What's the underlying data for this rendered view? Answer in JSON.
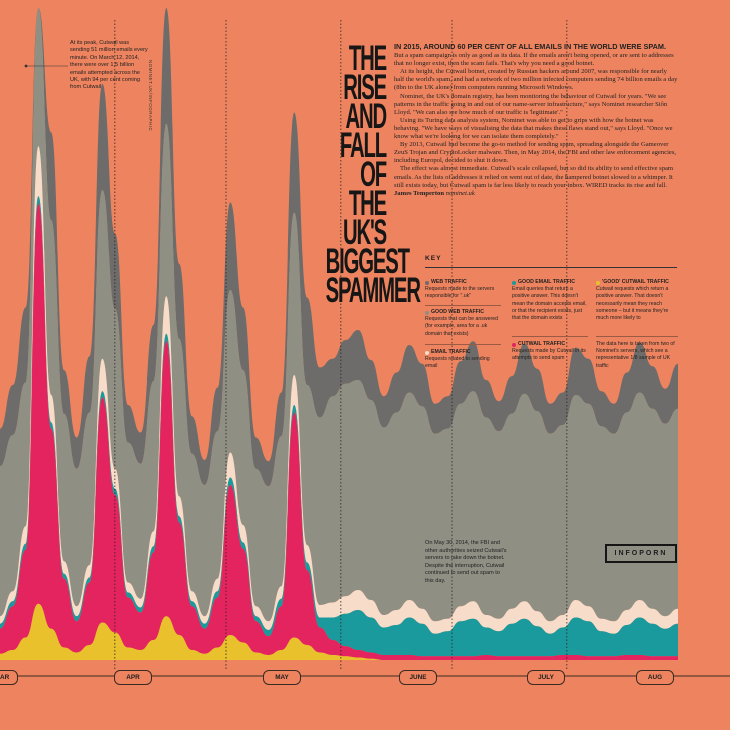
{
  "title_lines": [
    "THE RISE",
    "AND FALL",
    "OF THE UK'S",
    "BIGGEST",
    "SPAMMER"
  ],
  "article": {
    "lead": "IN 2015, AROUND 60 PER CENT OF ALL EMAILS IN THE WORLD WERE SPAM.",
    "p1": "But a spam campaign is only as good as its data. If the emails aren't being opened, or are sent to addresses that no longer exist, then the scam fails. That's why you need a good botnet.",
    "p2": "At its height, the Cutwail botnet, created by Russian hackers around 2007, was responsible for nearly half the world's spam, and had a network of two million infected computers sending 74 billion emails a day (8bn to the UK alone) from computers running Microsoft Windows.",
    "p3": "Nominet, the UK's domain registry, has been monitoring the behaviour of Cutwail for years. \"We see patterns in the traffic going in and out of our name-server infrastructure,\" says Nominet researcher Siôn Lloyd. \"We can also see how much of our traffic is 'legitimate'.\"",
    "p4": "Using its Turing data analysis system, Nominet was able to get to grips with how the botnet was behaving. \"We have ways of visualising the data that makes these flaws stand out,\" says Lloyd. \"Once we know what we're looking for we can isolate them completely.\"",
    "p5": "By 2013, Cutwail had become the go-to method for sending spam, spreading alongside the Gameover ZeuS Trojan and CryptoLocker malware. Then, in May 2014, the FBI and other law enforcement agencies, including Europol, decided to shut it down.",
    "p6": "The effect was almost immediate. Cutwail's scale collapsed, but so did its ability to send effective spam emails. As the lists of addresses it relied on went out of date, the hampered botnet slowed to a whimper. It still exists today, but Cutwail spam is far less likely to reach your inbox. WIRED tracks its rise and fall.",
    "byline": "James Temperton",
    "byline_source": "nominet.uk"
  },
  "credit": "NOMINET.UK/INFOGRAPHIC",
  "peak_note": "At its peak, Cutwail was sending 51 million emails every minute. On March 12, 2014, there were over 1.5 billion emails attempted across the UK, with 94 per cent coming from Cutwail",
  "key": {
    "title": "KEY",
    "items": [
      {
        "name": "WEB TRAFFIC",
        "desc": "Requests made to the servers responsible for \".uk\"",
        "color": "#6d6c6a"
      },
      {
        "name": "GOOD WEB TRAFFIC",
        "desc": "Requests that can be answered (for example, area for a .uk domain that exists)",
        "color": "#8f8f84"
      },
      {
        "name": "EMAIL TRAFFIC",
        "desc": "Requests related to sending email",
        "color": "#f6dcc9"
      },
      {
        "name": "GOOD EMAIL TRAFFIC",
        "desc": "Email queries that return a positive answer. This doesn't mean the domain accepts email, or that the recipient exists, just that the domain exists",
        "color": "#1a9a9c"
      },
      {
        "name": "CUTWAIL TRAFFIC",
        "desc": "Requests made by Cutwail in its attempts to send spam",
        "color": "#e4245e"
      },
      {
        "name": "'GOOD' CUTWAIL TRAFFIC",
        "desc": "Cutwail requests which return a positive answer. That doesn't necessarily mean they reach someone – but it means they're much more likely to",
        "color": "#e8c12c"
      }
    ],
    "data_note": "The data here is taken from two of Nominet's servers, which see a representative 1/8 sample of UK traffic"
  },
  "shutdown_note": "On May 30, 2014, the FBI and other authorities seized Cutwail's servers to take down the botnet. Despite the interruption, Cutwail continued to send out spam to this day.",
  "badge": "INFOPORN",
  "chart_data": {
    "type": "area",
    "stacked": true,
    "x_labels": [
      "MAR",
      "APR",
      "MAY",
      "JUNE",
      "JULY",
      "AUG"
    ],
    "x_range": [
      "2014-03-01",
      "2014-08-31"
    ],
    "annotations": [
      {
        "date": "2014-03-12",
        "text_ref": "peak_note"
      },
      {
        "date": "2014-05-30",
        "text_ref": "shutdown_note"
      }
    ],
    "month_divider_dates": [
      "2014-04-01",
      "2014-05-01",
      "2014-06-01",
      "2014-07-01",
      "2014-08-01"
    ],
    "series": [
      {
        "name": "'GOOD' CUTWAIL TRAFFIC",
        "color": "#e8c12c",
        "values": [
          5,
          8,
          18,
          45,
          25,
          10,
          6,
          12,
          30,
          22,
          10,
          8,
          16,
          35,
          20,
          8,
          5,
          10,
          20,
          14,
          6,
          4,
          8,
          18,
          12,
          6,
          4,
          3,
          2,
          1,
          0,
          0,
          0,
          0,
          0,
          0,
          0,
          0,
          0,
          0,
          0,
          0,
          0,
          0,
          0,
          0,
          0,
          0,
          0,
          0,
          0,
          0,
          0,
          0
        ]
      },
      {
        "name": "CUTWAIL TRAFFIC",
        "color": "#e4245e",
        "values": [
          20,
          35,
          70,
          320,
          160,
          55,
          25,
          50,
          180,
          110,
          40,
          30,
          70,
          220,
          90,
          35,
          20,
          40,
          120,
          75,
          25,
          15,
          35,
          180,
          60,
          20,
          12,
          8,
          6,
          5,
          4,
          4,
          4,
          3,
          3,
          3,
          3,
          3,
          4,
          3,
          3,
          3,
          3,
          3,
          4,
          4,
          3,
          3,
          3,
          4,
          4,
          3,
          3,
          3
        ]
      },
      {
        "name": "GOOD EMAIL TRAFFIC",
        "color": "#1a9a9c",
        "values": [
          4,
          4,
          5,
          6,
          5,
          4,
          4,
          4,
          5,
          5,
          4,
          4,
          5,
          6,
          5,
          4,
          4,
          5,
          6,
          5,
          4,
          5,
          6,
          6,
          6,
          8,
          18,
          26,
          32,
          28,
          22,
          24,
          30,
          26,
          18,
          20,
          28,
          30,
          22,
          20,
          26,
          30,
          24,
          18,
          22,
          30,
          28,
          20,
          18,
          24,
          30,
          26,
          22,
          26
        ]
      },
      {
        "name": "EMAIL TRAFFIC",
        "color": "#f6dcc9",
        "values": [
          6,
          8,
          14,
          40,
          22,
          10,
          8,
          10,
          26,
          16,
          8,
          7,
          12,
          30,
          16,
          8,
          6,
          10,
          20,
          14,
          8,
          7,
          10,
          24,
          14,
          10,
          12,
          14,
          16,
          14,
          10,
          12,
          14,
          12,
          10,
          10,
          12,
          14,
          10,
          10,
          12,
          14,
          12,
          10,
          10,
          14,
          12,
          10,
          10,
          12,
          14,
          12,
          10,
          12
        ]
      },
      {
        "name": "GOOD WEB TRAFFIC",
        "color": "#8f8f84",
        "values": [
          120,
          125,
          115,
          130,
          140,
          118,
          110,
          122,
          135,
          128,
          112,
          108,
          120,
          138,
          126,
          110,
          105,
          118,
          130,
          124,
          110,
          108,
          120,
          130,
          128,
          150,
          165,
          170,
          168,
          160,
          150,
          158,
          166,
          162,
          150,
          152,
          162,
          168,
          158,
          150,
          156,
          166,
          160,
          150,
          152,
          164,
          162,
          154,
          150,
          158,
          166,
          160,
          154,
          160
        ]
      },
      {
        "name": "WEB TRAFFIC",
        "color": "#6d6c6a",
        "values": [
          30,
          40,
          60,
          110,
          70,
          35,
          25,
          45,
          85,
          60,
          30,
          25,
          45,
          95,
          60,
          30,
          20,
          35,
          70,
          50,
          25,
          20,
          35,
          80,
          70,
          40,
          30,
          35,
          40,
          32,
          25,
          32,
          38,
          34,
          24,
          26,
          34,
          40,
          30,
          24,
          30,
          40,
          34,
          24,
          26,
          38,
          36,
          28,
          24,
          32,
          40,
          34,
          28,
          36
        ]
      }
    ]
  }
}
